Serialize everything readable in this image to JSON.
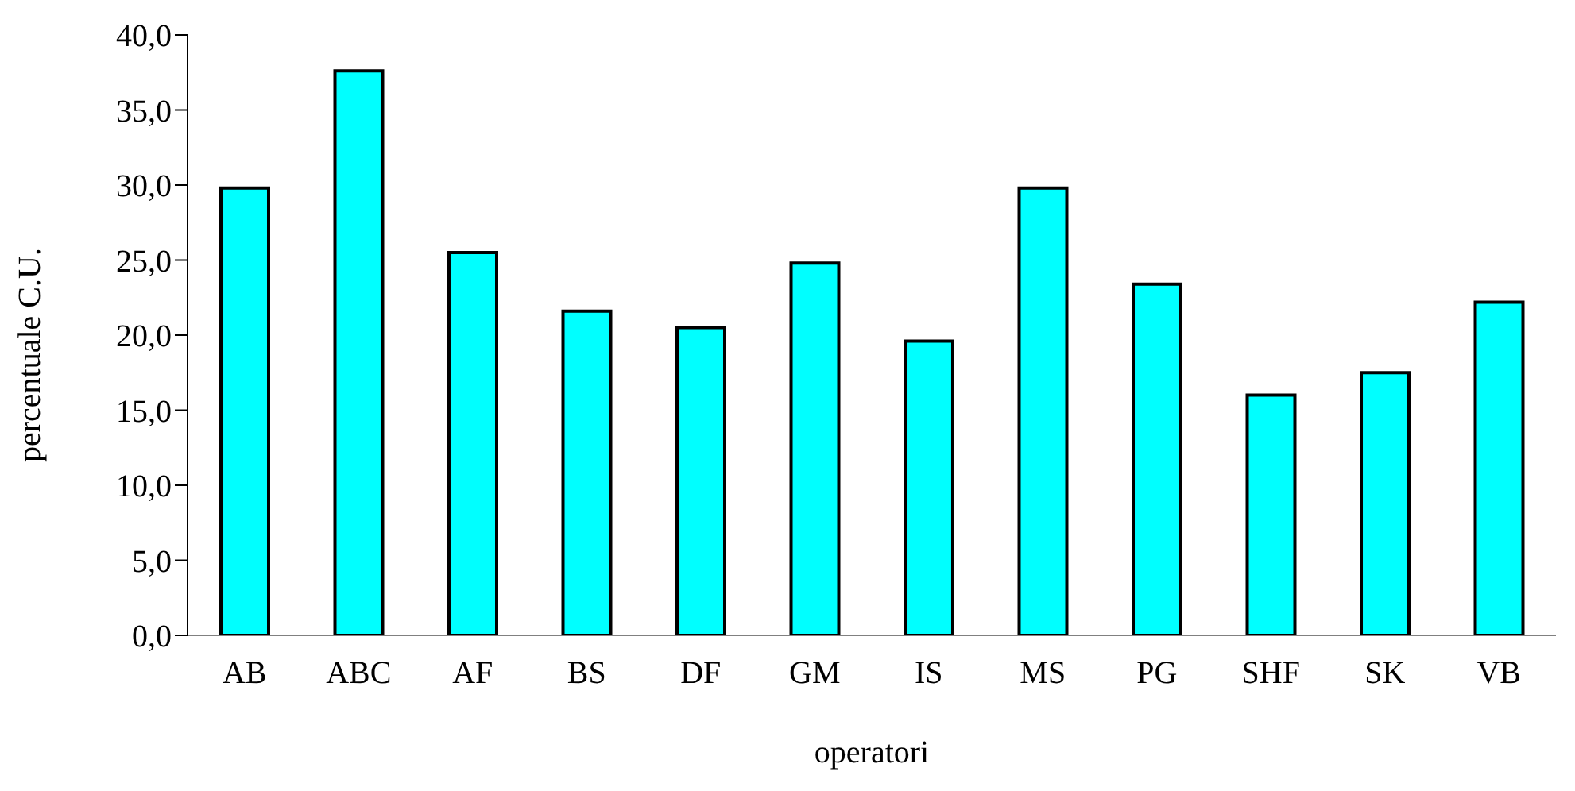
{
  "chart_data": {
    "type": "bar",
    "xlabel": "operatori",
    "ylabel": "percentuale C.U.",
    "categories": [
      "AB",
      "ABC",
      "AF",
      "BS",
      "DF",
      "GM",
      "IS",
      "MS",
      "PG",
      "SHF",
      "SK",
      "VB"
    ],
    "values": [
      29.8,
      37.6,
      25.5,
      21.6,
      20.5,
      24.8,
      19.6,
      29.8,
      23.4,
      16.0,
      17.5,
      22.2
    ],
    "color": "#00ffff",
    "ylim": [
      0,
      40
    ],
    "yticks": [
      {
        "value": 0,
        "label": "0,0"
      },
      {
        "value": 5,
        "label": "5,0"
      },
      {
        "value": 10,
        "label": "10,0"
      },
      {
        "value": 15,
        "label": "15,0"
      },
      {
        "value": 20,
        "label": "20,0"
      },
      {
        "value": 25,
        "label": "25,0"
      },
      {
        "value": 30,
        "label": "30,0"
      },
      {
        "value": 35,
        "label": "35,0"
      },
      {
        "value": 40,
        "label": "40,0"
      }
    ],
    "grid": false,
    "legend": false
  }
}
